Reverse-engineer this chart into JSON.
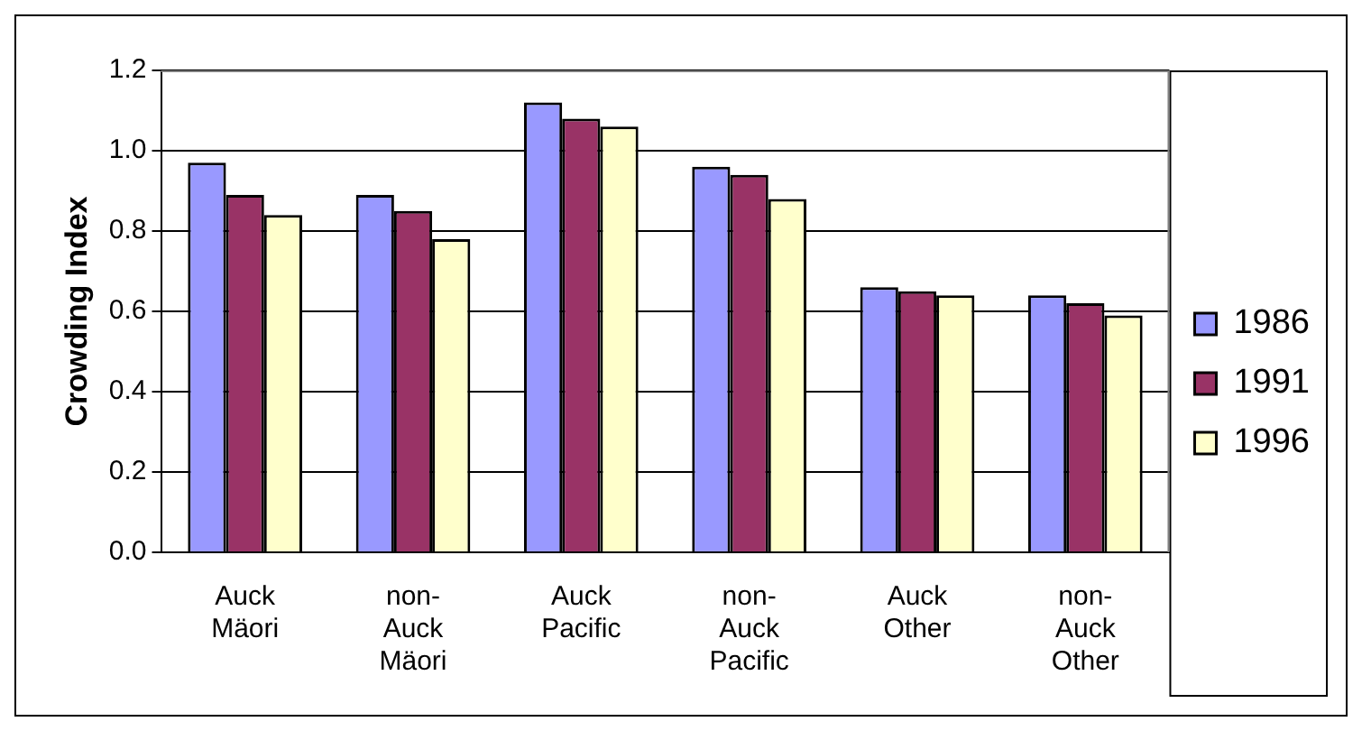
{
  "chart_data": {
    "type": "bar",
    "ylabel": "Crowding Index",
    "categories": [
      "Auck Mäori",
      "non-Auck Mäori",
      "Auck Pacific",
      "non-Auck Pacific",
      "Auck Other",
      "non-Auck Other"
    ],
    "series": [
      {
        "name": "1986",
        "color": "#9999ff",
        "values": [
          0.97,
          0.89,
          1.12,
          0.96,
          0.66,
          0.64
        ]
      },
      {
        "name": "1991",
        "color": "#993366",
        "values": [
          0.89,
          0.85,
          1.08,
          0.94,
          0.65,
          0.62
        ]
      },
      {
        "name": "1996",
        "color": "#ffffcc",
        "values": [
          0.84,
          0.78,
          1.06,
          0.88,
          0.64,
          0.59
        ]
      }
    ],
    "ylim": [
      0,
      1.2
    ],
    "yticks": [
      {
        "value": 0,
        "label": "0.0"
      },
      {
        "value": 0.2,
        "label": "0.2"
      },
      {
        "value": 0.4,
        "label": "0.4"
      },
      {
        "value": 0.6,
        "label": "0.6"
      },
      {
        "value": 0.8,
        "label": "0.8"
      },
      {
        "value": 1,
        "label": "1.0"
      },
      {
        "value": 1.2,
        "label": "1.2"
      }
    ],
    "grid": "y",
    "legend": "right"
  }
}
